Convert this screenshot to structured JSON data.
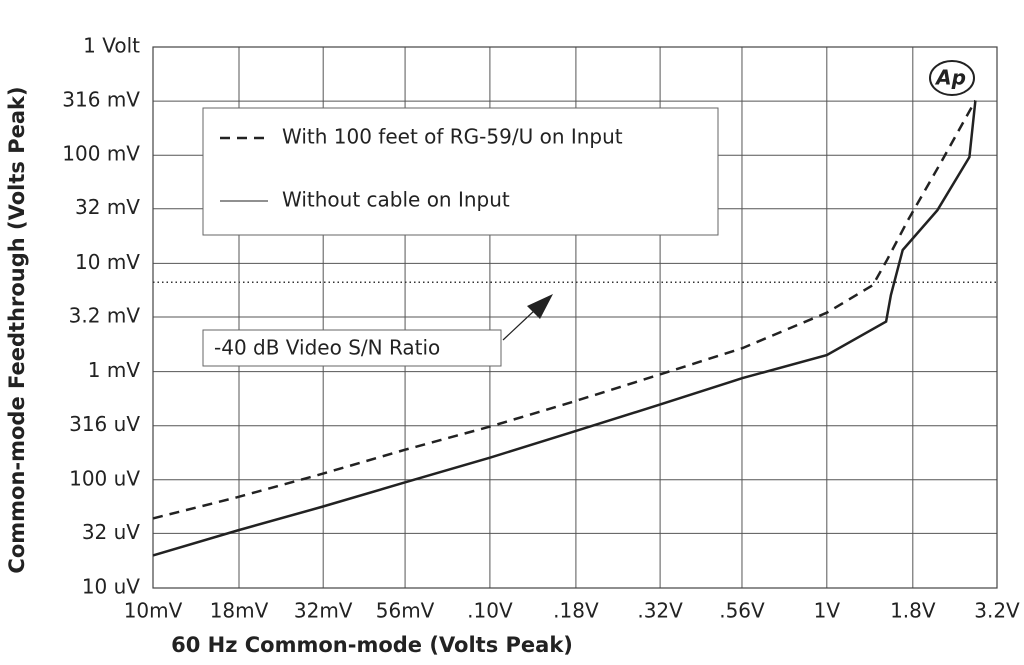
{
  "chart_data": {
    "type": "line",
    "x_label": "60 Hz Common-mode (Volts Peak)",
    "y_label": "Common-mode Feedthrough (Volts Peak)",
    "xscale": "log",
    "yscale": "log",
    "grid": true,
    "xlim": [
      0.01,
      3.2
    ],
    "ylim": [
      1e-05,
      1
    ],
    "xticks": [
      {
        "value": 0.01,
        "label": "10mV"
      },
      {
        "value": 0.018,
        "label": "18mV"
      },
      {
        "value": 0.032,
        "label": "32mV"
      },
      {
        "value": 0.056,
        "label": "56mV"
      },
      {
        "value": 0.1,
        "label": ".10V"
      },
      {
        "value": 0.18,
        "label": ".18V"
      },
      {
        "value": 0.32,
        "label": ".32V"
      },
      {
        "value": 0.56,
        "label": ".56V"
      },
      {
        "value": 1,
        "label": "1V"
      },
      {
        "value": 1.8,
        "label": "1.8V"
      },
      {
        "value": 3.2,
        "label": "3.2V"
      }
    ],
    "yticks": [
      {
        "value": 1e-05,
        "label": "10 uV"
      },
      {
        "value": 3.2e-05,
        "label": "32 uV"
      },
      {
        "value": 0.0001,
        "label": "100 uV"
      },
      {
        "value": 0.000316,
        "label": "316 uV"
      },
      {
        "value": 0.001,
        "label": "1 mV"
      },
      {
        "value": 0.0032,
        "label": "3.2 mV"
      },
      {
        "value": 0.01,
        "label": "10 mV"
      },
      {
        "value": 0.032,
        "label": "32 mV"
      },
      {
        "value": 0.1,
        "label": "100 mV"
      },
      {
        "value": 0.316,
        "label": "316 mV"
      },
      {
        "value": 1,
        "label": "1 Volt"
      }
    ],
    "series": [
      {
        "name": "With 100 feet of RG-59/U on Input",
        "color": "#222222",
        "dash": true,
        "x": [
          0.01,
          0.0178,
          0.0316,
          0.0562,
          0.1,
          0.178,
          0.316,
          0.562,
          1.0,
          1.37,
          1.51,
          1.74,
          2.2,
          2.76
        ],
        "values": [
          4.4e-05,
          6.9e-05,
          0.000113,
          0.00019,
          0.00031,
          0.00053,
          0.00093,
          0.00165,
          0.0035,
          0.0063,
          0.0108,
          0.025,
          0.09,
          0.32
        ]
      },
      {
        "name": "Without cable on Input",
        "color": "#222222",
        "dash": false,
        "x": [
          0.01,
          0.0178,
          0.0316,
          0.0562,
          0.1,
          0.178,
          0.316,
          0.562,
          1.0,
          1.5,
          1.55,
          1.68,
          2.13,
          2.65,
          2.76
        ],
        "values": [
          2e-05,
          3.4e-05,
          5.6e-05,
          9.5e-05,
          0.00016,
          0.00028,
          0.00049,
          0.00087,
          0.00142,
          0.0029,
          0.0051,
          0.0133,
          0.031,
          0.096,
          0.32
        ]
      }
    ],
    "reference_line": {
      "value": 0.0067,
      "label": "-40 dB Video S/N Ratio"
    },
    "logo": "Ap"
  }
}
